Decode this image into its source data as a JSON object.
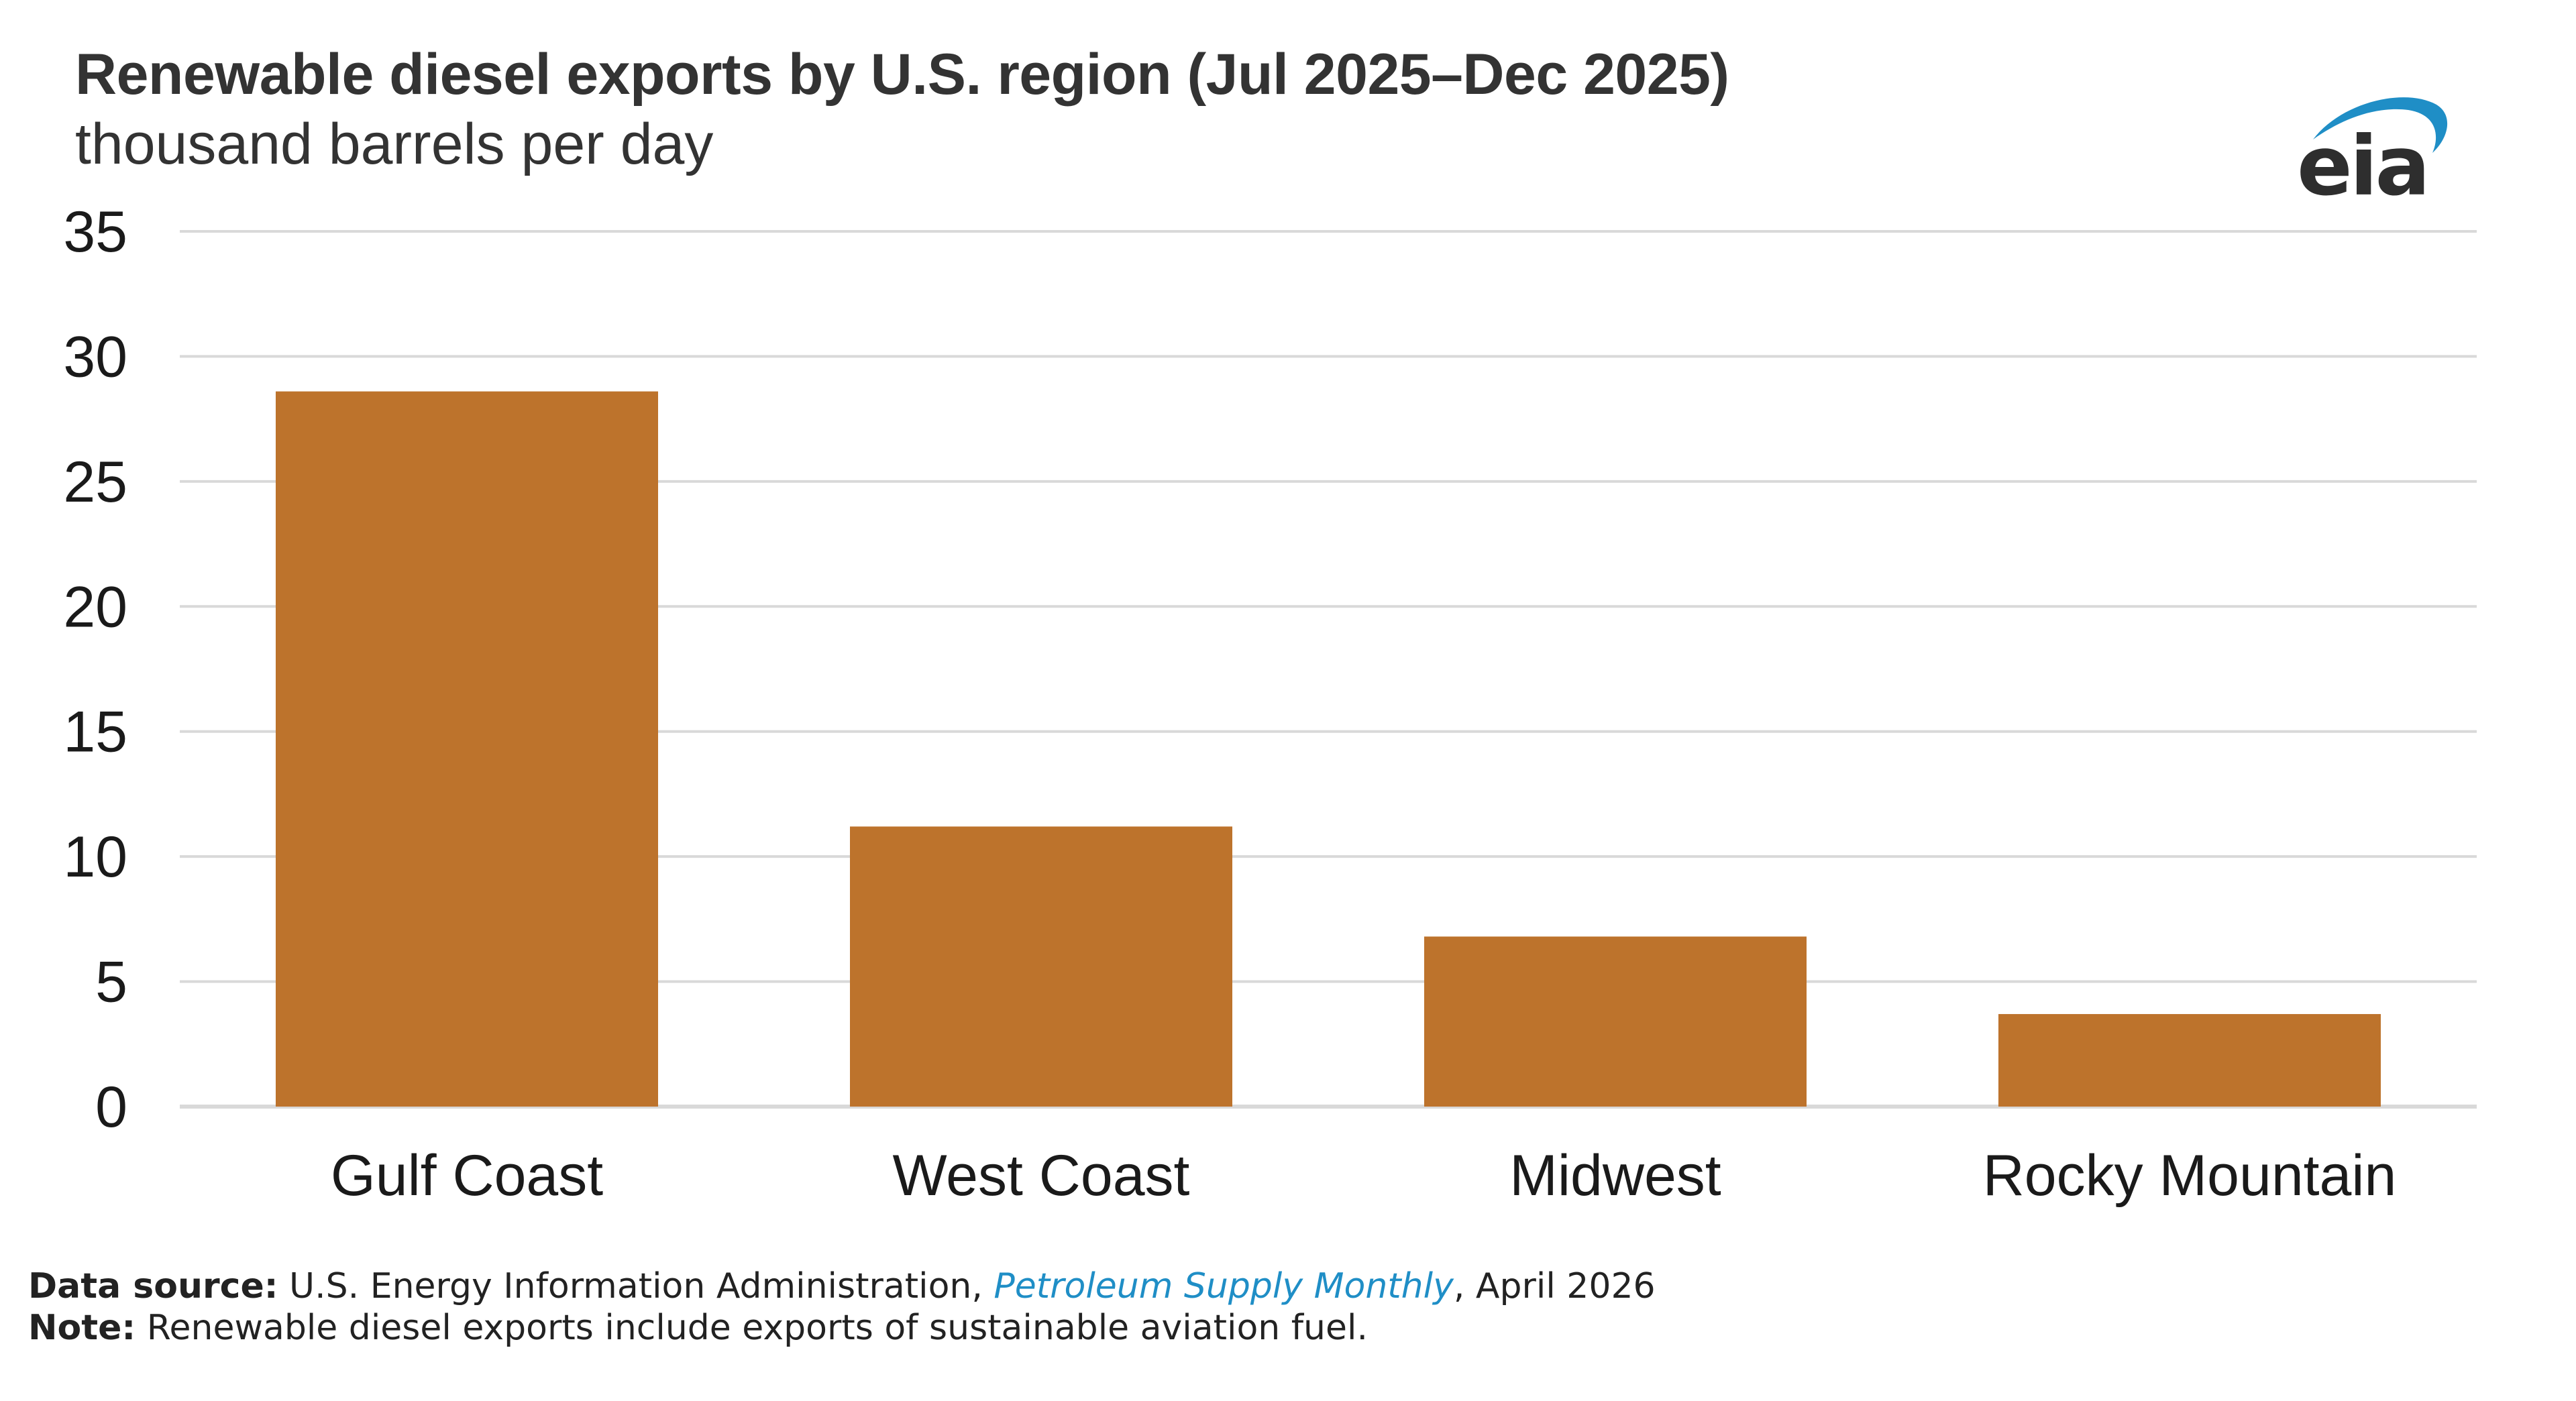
{
  "header": {
    "title": "Renewable diesel exports by U.S. region (Jul 2025–Dec 2025)",
    "subtitle": "thousand barrels per day",
    "logo_text": "eia"
  },
  "colors": {
    "bar": "#BD732C",
    "grid": "#D9D9D9",
    "logo_text": "#2E2E2E",
    "logo_swoosh": "#1F8EC6",
    "link": "#1F8EC6"
  },
  "chart_data": {
    "type": "bar",
    "title": "Renewable diesel exports by U.S. region (Jul 2025–Dec 2025)",
    "subtitle": "thousand barrels per day",
    "xlabel": "",
    "ylabel": "",
    "categories": [
      "Gulf Coast",
      "West Coast",
      "Midwest",
      "Rocky Mountain"
    ],
    "values": [
      28.6,
      11.2,
      6.8,
      3.7
    ],
    "ylim": [
      0,
      35
    ],
    "yticks": [
      0,
      5,
      10,
      15,
      20,
      25,
      30,
      35
    ],
    "grid": true,
    "legend": "none"
  },
  "footer": {
    "source_label": "Data source:",
    "source_pre": " U.S. Energy Information Administration, ",
    "source_link": "Petroleum Supply Monthly",
    "source_post": ", April 2026",
    "note_label": "Note:",
    "note_text": " Renewable diesel exports include exports of sustainable aviation fuel."
  }
}
